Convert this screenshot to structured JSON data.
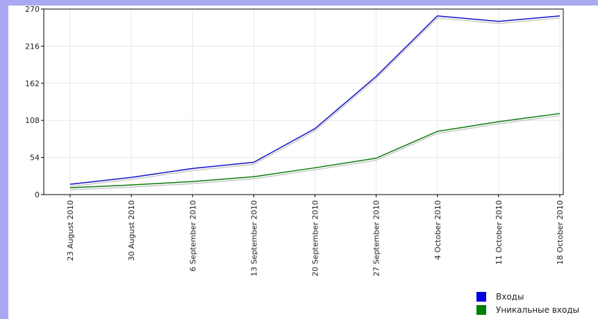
{
  "chart_data": {
    "type": "line",
    "title": "",
    "xlabel": "",
    "ylabel": "",
    "ylim": [
      0,
      270
    ],
    "yticks": [
      0,
      54,
      108,
      162,
      216,
      270
    ],
    "grid": true,
    "legend_position": "bottom-right",
    "categories": [
      "23 August 2010",
      "30 August 2010",
      "6 September 2010",
      "13 September 2010",
      "20 September 2010",
      "27 September 2010",
      "4 October 2010",
      "11 October 2010",
      "18 October 2010"
    ],
    "series": [
      {
        "name": "Входы",
        "color": "#1010c8",
        "values": [
          15,
          25,
          38,
          47,
          96,
          172,
          260,
          252,
          260
        ]
      },
      {
        "name": "Уникальные входы",
        "color": "#0a7a0a",
        "values": [
          10,
          14,
          19,
          26,
          39,
          53,
          92,
          106,
          118
        ]
      }
    ]
  },
  "legend": {
    "items": [
      {
        "label": "Входы",
        "color": "#0000e0"
      },
      {
        "label": "Уникальные входы",
        "color": "#008000"
      }
    ]
  }
}
